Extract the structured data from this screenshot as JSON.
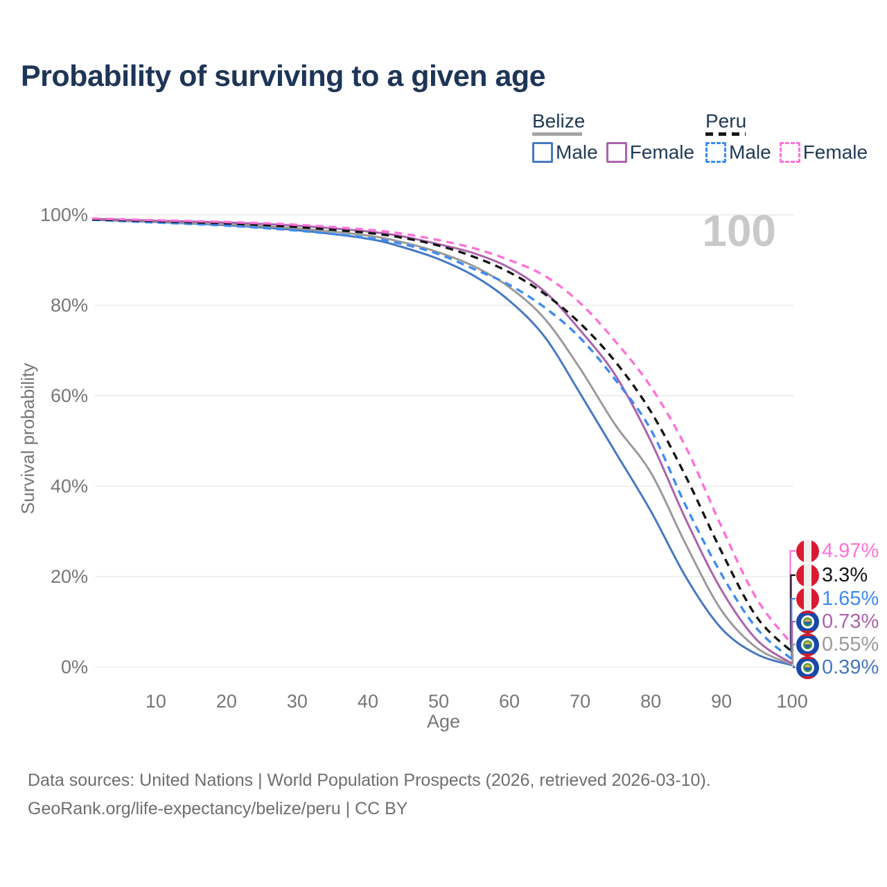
{
  "title": "Probability of surviving to a given age",
  "legend": {
    "groups": [
      {
        "label": "Belize",
        "line_color": "#a3a3a3",
        "line_style": "solid",
        "items": [
          {
            "label": "Male",
            "color": "#4678c0",
            "style": "solid"
          },
          {
            "label": "Female",
            "color": "#ab62ab",
            "style": "solid"
          }
        ]
      },
      {
        "label": "Peru",
        "line_color": "#161616",
        "line_style": "dashed",
        "items": [
          {
            "label": "Male",
            "color": "#3d8bf2",
            "style": "dashed"
          },
          {
            "label": "Female",
            "color": "#ff70d9",
            "style": "dashed"
          }
        ]
      }
    ]
  },
  "chart_data": {
    "type": "line",
    "title": "Probability of surviving to a given age",
    "xlabel": "Age",
    "ylabel": "Survival probability",
    "watermark": "100",
    "xlim": [
      1,
      100
    ],
    "ylim": [
      0,
      100
    ],
    "x_ticks": [
      10,
      20,
      30,
      40,
      50,
      60,
      70,
      80,
      90,
      100
    ],
    "y_ticks": [
      0,
      20,
      40,
      60,
      80,
      100
    ],
    "y_tick_format": "%",
    "grid": "horizontal",
    "legend_position": "top-right",
    "x": [
      1,
      10,
      20,
      30,
      40,
      45,
      50,
      55,
      60,
      65,
      70,
      75,
      80,
      85,
      90,
      95,
      100
    ],
    "series": [
      {
        "name": "Peru Female",
        "country": "Peru",
        "sex": "Female",
        "color": "#ff70d9",
        "dash": "dashed",
        "end_label": "4.97%",
        "end_value": 4.97,
        "values": [
          99.2,
          98.8,
          98.4,
          97.8,
          96.7,
          95.8,
          94.4,
          92.6,
          90.0,
          86.5,
          80.5,
          72.0,
          62.0,
          48.5,
          31.0,
          15.0,
          4.97
        ]
      },
      {
        "name": "Peru",
        "country": "Peru",
        "sex": "Both",
        "color": "#141414",
        "dash": "dashed",
        "end_label": "3.3%",
        "end_value": 3.3,
        "values": [
          99.0,
          98.6,
          98.1,
          97.3,
          96.0,
          94.9,
          93.2,
          90.7,
          87.3,
          82.5,
          76.0,
          67.5,
          56.5,
          42.0,
          25.5,
          11.0,
          3.3
        ]
      },
      {
        "name": "Peru Male",
        "country": "Peru",
        "sex": "Male",
        "color": "#3d8bf2",
        "dash": "dashed",
        "end_label": "1.65%",
        "end_value": 1.65,
        "values": [
          98.9,
          98.3,
          97.6,
          96.5,
          94.9,
          93.5,
          91.3,
          88.0,
          84.5,
          79.5,
          72.8,
          63.5,
          52.5,
          35.5,
          20.5,
          8.5,
          1.65
        ]
      },
      {
        "name": "Belize Female",
        "country": "Belize",
        "sex": "Female",
        "color": "#ab62ab",
        "dash": "solid",
        "end_label": "0.73%",
        "end_value": 0.73,
        "values": [
          99.1,
          98.7,
          98.3,
          97.6,
          96.3,
          95.2,
          93.5,
          91.5,
          88.3,
          83.0,
          74.5,
          64.5,
          50.0,
          32.5,
          17.0,
          6.0,
          0.73
        ]
      },
      {
        "name": "Belize",
        "country": "Belize",
        "sex": "Both",
        "color": "#9a9a9a",
        "dash": "solid",
        "end_label": "0.55%",
        "end_value": 0.55,
        "values": [
          99.0,
          98.5,
          97.9,
          97.0,
          95.4,
          93.9,
          91.7,
          88.6,
          84.0,
          77.0,
          66.0,
          53.5,
          43.0,
          27.0,
          12.5,
          4.2,
          0.55
        ]
      },
      {
        "name": "Belize Male",
        "country": "Belize",
        "sex": "Male",
        "color": "#4678c0",
        "dash": "solid",
        "end_label": "0.39%",
        "end_value": 0.39,
        "values": [
          98.9,
          98.4,
          97.7,
          96.6,
          94.7,
          92.8,
          90.2,
          86.5,
          81.0,
          73.0,
          60.5,
          47.5,
          34.5,
          19.8,
          8.5,
          2.8,
          0.39
        ]
      }
    ]
  },
  "sources": {
    "line1": "Data sources: United Nations | World Population Prospects (2026, retrieved 2026-03-10).",
    "line2": "GeoRank.org/life-expectancy/belize/peru | CC BY"
  }
}
